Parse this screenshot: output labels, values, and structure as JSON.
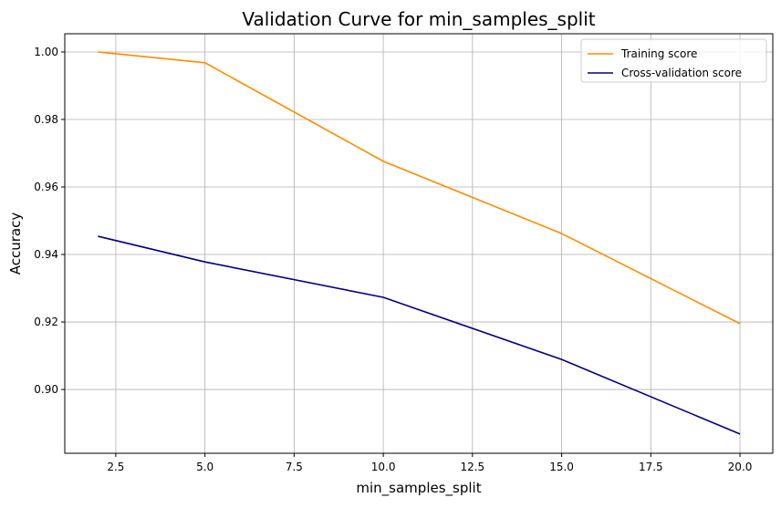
{
  "chart_data": {
    "type": "line",
    "title": "Validation Curve for min_samples_split",
    "xlabel": "min_samples_split",
    "ylabel": "Accuracy",
    "x": [
      2,
      5,
      10,
      15,
      20
    ],
    "xlim": [
      1.07,
      20.92
    ],
    "ylim": [
      0.8811,
      1.0054
    ],
    "xticks": [
      2.5,
      5.0,
      7.5,
      10.0,
      12.5,
      15.0,
      17.5,
      20.0
    ],
    "xtick_labels": [
      "2.5",
      "5.0",
      "7.5",
      "10.0",
      "12.5",
      "15.0",
      "17.5",
      "20.0"
    ],
    "yticks": [
      0.9,
      0.92,
      0.94,
      0.96,
      0.98,
      1.0
    ],
    "ytick_labels": [
      "0.90",
      "0.92",
      "0.94",
      "0.96",
      "0.98",
      "1.00"
    ],
    "grid": true,
    "legend_position": "top-right",
    "series": [
      {
        "name": "Training score",
        "color": "#ff8c00",
        "values": [
          1.0,
          0.9968,
          0.9676,
          0.9462,
          0.9195
        ]
      },
      {
        "name": "Cross-validation score",
        "color": "#000080",
        "values": [
          0.9454,
          0.9378,
          0.9273,
          0.9089,
          0.8868
        ]
      }
    ]
  }
}
